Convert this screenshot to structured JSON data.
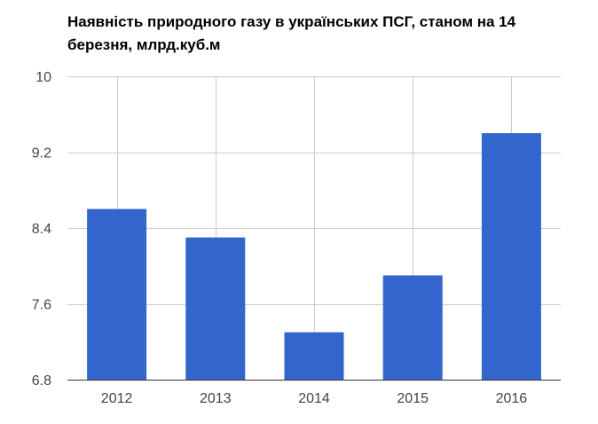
{
  "chart_data": {
    "type": "bar",
    "title": "Наявність природного газу в українських ПСГ, станом на 14 березня, млрд.куб.м",
    "categories": [
      "2012",
      "2013",
      "2014",
      "2015",
      "2016"
    ],
    "values": [
      8.6,
      8.3,
      7.3,
      7.9,
      9.4
    ],
    "xlabel": "",
    "ylabel": "",
    "ylim": [
      6.8,
      10
    ],
    "yticks": [
      6.8,
      7.6,
      8.4,
      9.2,
      10
    ],
    "ytick_labels": [
      "6.8",
      "7.6",
      "8.4",
      "9.2",
      "10"
    ],
    "grid": true,
    "legend": "none",
    "bar_color": "#3366cc",
    "grid_color": "#cccccc"
  }
}
